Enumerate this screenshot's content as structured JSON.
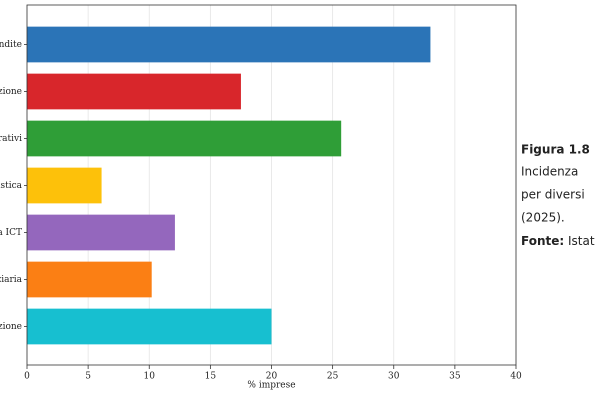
{
  "chart_data": {
    "type": "bar",
    "orientation": "horizontal",
    "categories": [
      "endite",
      "zione",
      "rativi",
      "istica",
      "a ICT",
      "ziaria",
      "zione"
    ],
    "values": [
      33.0,
      17.5,
      25.7,
      6.1,
      12.1,
      10.2,
      20.0
    ],
    "colors": [
      "#2b74b7",
      "#d8262b",
      "#2f9e37",
      "#fdc10a",
      "#9467bd",
      "#fb7f14",
      "#17bfd0"
    ],
    "xlim": [
      0,
      40
    ],
    "xticks": [
      0,
      5,
      10,
      15,
      20,
      25,
      30,
      35,
      40
    ],
    "xlabel": "% imprese",
    "grid": true
  },
  "caption": {
    "figure": "Figura 1.8",
    "lines": [
      "Incidenza",
      "per diversi",
      "(2025)."
    ],
    "source_label": "Fonte:",
    "source": "Istat"
  }
}
